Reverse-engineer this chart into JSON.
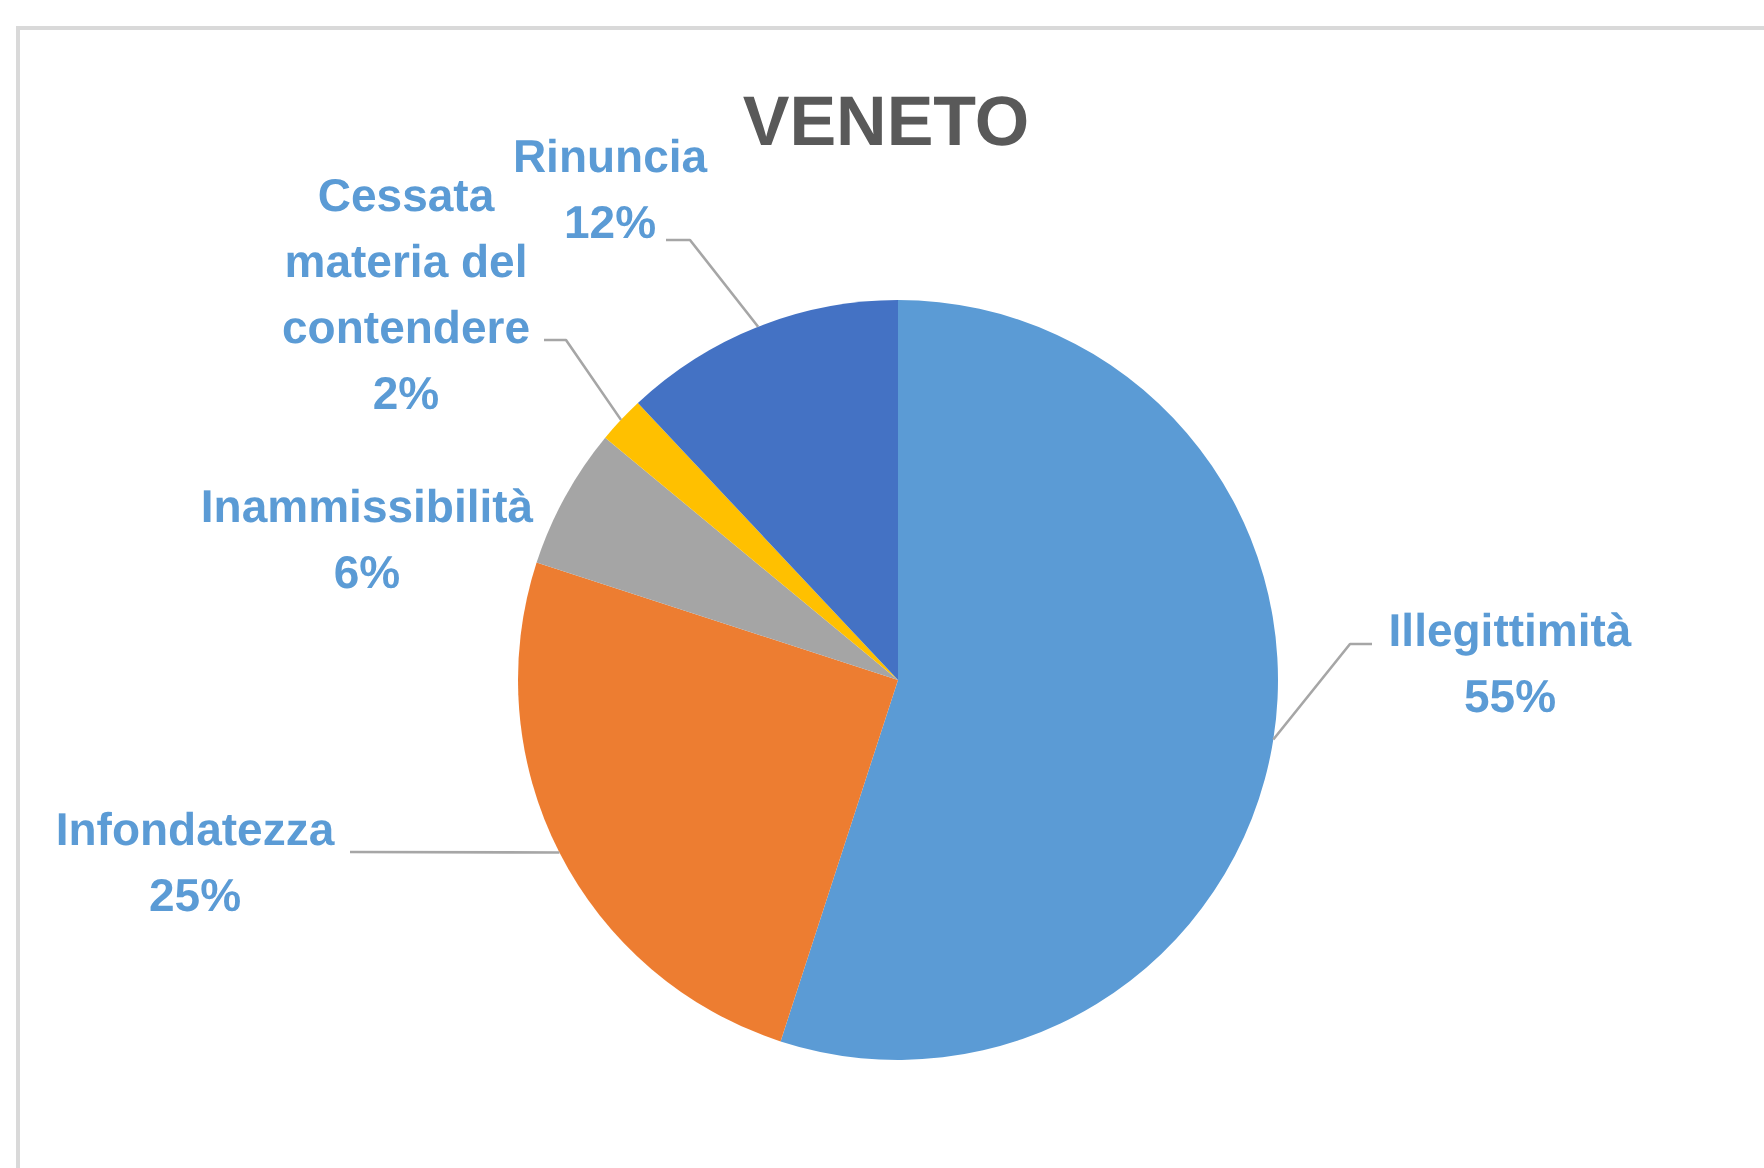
{
  "chart_data": {
    "type": "pie",
    "title": "VENETO",
    "categories": [
      "Illegittimità",
      "Infondatezza",
      "Inammissibilità",
      "Cessata materia del contendere",
      "Rinuncia"
    ],
    "values": [
      55,
      25,
      6,
      2,
      12
    ],
    "colors": [
      "#5b9bd5",
      "#ed7d31",
      "#a5a5a5",
      "#ffc000",
      "#4472c4"
    ],
    "value_labels": [
      "55%",
      "25%",
      "6%",
      "2%",
      "12%"
    ]
  }
}
